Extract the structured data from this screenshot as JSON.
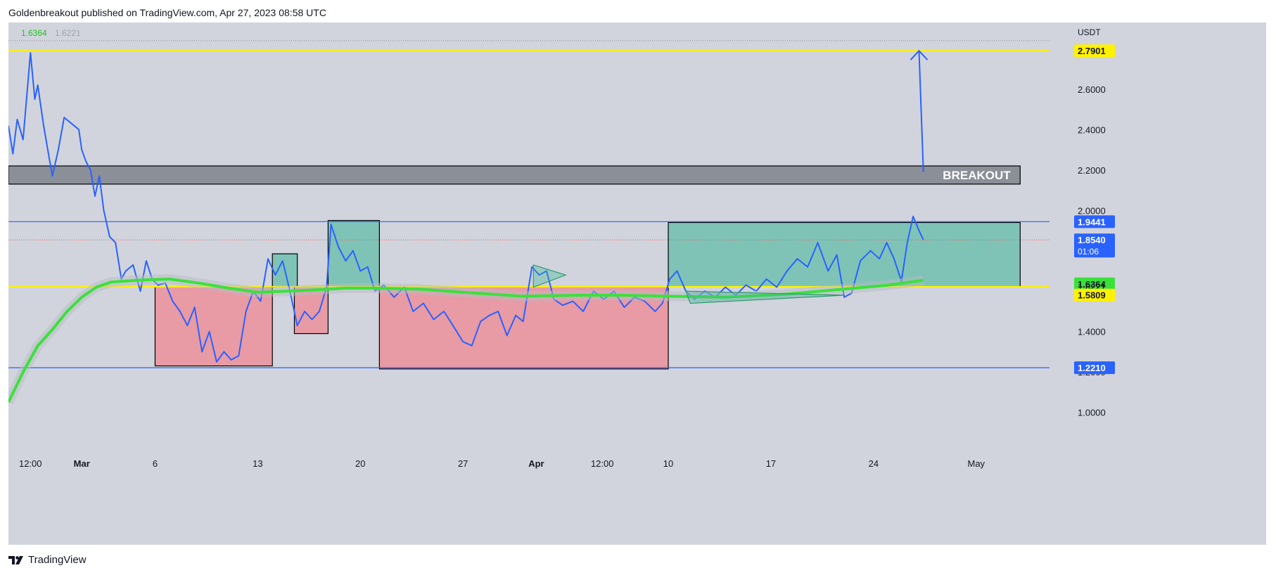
{
  "header": {
    "text": "Goldenbreakout published on TradingView.com, Apr 27, 2023 08:58 UTC"
  },
  "footer": {
    "brand": "TradingView",
    "icon": "tradingview-logo-icon"
  },
  "colors": {
    "background": "#d1d4dc",
    "price_line": "#2962ff",
    "ma_line": "#3be13b",
    "yellow_level": "#fff200",
    "blue_level": "#2962ff",
    "red_zone": "#e89aa5",
    "green_zone": "#7fc3b7",
    "breakout_zone": "#8a8f98"
  },
  "chart_data": {
    "type": "line",
    "symbol_values": {
      "current": "1.6364",
      "secondary": "1.6221"
    },
    "currency": "USDT",
    "y_ticks": [
      1.0,
      1.2,
      1.4,
      1.6,
      1.8,
      2.0,
      2.2,
      2.4,
      2.6
    ],
    "y_tick_labels": [
      "1.0000",
      "1.2000",
      "1.4000",
      "1.6000",
      "1.8000",
      "2.0000",
      "2.2000",
      "2.4000",
      "2.6000"
    ],
    "ylim": [
      0.79,
      2.93
    ],
    "x_range": [
      "2023-02-24",
      "2023-05-06"
    ],
    "x_ticks": [
      {
        "label": "12:00",
        "date": "2023-02-25T12:00"
      },
      {
        "label": "Mar",
        "date": "2023-03-01"
      },
      {
        "label": "6",
        "date": "2023-03-06"
      },
      {
        "label": "13",
        "date": "2023-03-13"
      },
      {
        "label": "20",
        "date": "2023-03-20"
      },
      {
        "label": "27",
        "date": "2023-03-27"
      },
      {
        "label": "Apr",
        "date": "2023-04-01"
      },
      {
        "label": "12:00",
        "date": "2023-04-05T12:00"
      },
      {
        "label": "10",
        "date": "2023-04-10"
      },
      {
        "label": "17",
        "date": "2023-04-17"
      },
      {
        "label": "24",
        "date": "2023-04-24"
      },
      {
        "label": "May",
        "date": "2023-05-01"
      }
    ],
    "price_labels": [
      {
        "text": "2.7901",
        "value": 2.7901,
        "style": "yellow"
      },
      {
        "text": "1.9441",
        "value": 1.9441,
        "style": "blue"
      },
      {
        "text": "1.8540",
        "value": 1.854,
        "style": "blue",
        "sub": "01:06"
      },
      {
        "text": "1.6364",
        "value": 1.6364,
        "style": "green"
      },
      {
        "text": "1.6221",
        "value": 1.6221,
        "style": "plain"
      },
      {
        "text": "1.5809",
        "value": 1.5809,
        "style": "yellow"
      },
      {
        "text": "1.2210",
        "value": 1.221,
        "style": "blue"
      }
    ],
    "horizontal_levels": [
      {
        "value": 2.7901,
        "color": "yellow"
      },
      {
        "value": 2.84,
        "color": "dotted"
      },
      {
        "value": 1.9441,
        "color": "blue"
      },
      {
        "value": 1.854,
        "color": "red-dotted"
      },
      {
        "value": 1.6221,
        "color": "yellow"
      },
      {
        "value": 1.221,
        "color": "blue"
      }
    ],
    "zones": [
      {
        "kind": "breakout",
        "x0": "2023-02-24",
        "x1": "2023-05-04",
        "y0": 2.13,
        "y1": 2.22,
        "label": "BREAKOUT"
      },
      {
        "kind": "red",
        "x0": "2023-03-06",
        "x1": "2023-03-14",
        "y0": 1.23,
        "y1": 1.6221
      },
      {
        "kind": "green",
        "x0": "2023-03-14",
        "x1": "2023-03-15.7",
        "y0": 1.6221,
        "y1": 1.785
      },
      {
        "kind": "red",
        "x0": "2023-03-15.5",
        "x1": "2023-03-17.8",
        "y0": 1.39,
        "y1": 1.6221
      },
      {
        "kind": "green",
        "x0": "2023-03-17.8",
        "x1": "2023-03-21.3",
        "y0": 1.6221,
        "y1": 1.95
      },
      {
        "kind": "red",
        "x0": "2023-03-21.3",
        "x1": "2023-04-10",
        "y0": 1.215,
        "y1": 1.6221
      },
      {
        "kind": "green",
        "x0": "2023-04-10",
        "x1": "2023-05-04",
        "y0": 1.6221,
        "y1": 1.94
      }
    ],
    "series": [
      {
        "type": "price",
        "points": [
          [
            "2023-02-24",
            2.42
          ],
          [
            "2023-02-24.3",
            2.28
          ],
          [
            "2023-02-24.6",
            2.45
          ],
          [
            "2023-02-25",
            2.35
          ],
          [
            "2023-02-25.5",
            2.78
          ],
          [
            "2023-02-25.8",
            2.55
          ],
          [
            "2023-02-26",
            2.62
          ],
          [
            "2023-02-26.4",
            2.42
          ],
          [
            "2023-02-26.8",
            2.25
          ],
          [
            "2023-02-27",
            2.17
          ],
          [
            "2023-02-27.4",
            2.3
          ],
          [
            "2023-02-27.8",
            2.46
          ],
          [
            "2023-02-28.3",
            2.43
          ],
          [
            "2023-02-28.8",
            2.4
          ],
          [
            "2023-03-01",
            2.3
          ],
          [
            "2023-03-01.3",
            2.24
          ],
          [
            "2023-03-01.6",
            2.2
          ],
          [
            "2023-03-01.9",
            2.07
          ],
          [
            "2023-03-02.2",
            2.17
          ],
          [
            "2023-03-02.5",
            2.0
          ],
          [
            "2023-03-02.9",
            1.87
          ],
          [
            "2023-03-03.3",
            1.84
          ],
          [
            "2023-03-03.7",
            1.66
          ],
          [
            "2023-03-04",
            1.7
          ],
          [
            "2023-03-04.5",
            1.73
          ],
          [
            "2023-03-05",
            1.6
          ],
          [
            "2023-03-05.4",
            1.75
          ],
          [
            "2023-03-05.8",
            1.66
          ],
          [
            "2023-03-06.2",
            1.63
          ],
          [
            "2023-03-06.7",
            1.64
          ],
          [
            "2023-03-07.2",
            1.55
          ],
          [
            "2023-03-07.7",
            1.5
          ],
          [
            "2023-03-08.2",
            1.43
          ],
          [
            "2023-03-08.7",
            1.52
          ],
          [
            "2023-03-09.2",
            1.3
          ],
          [
            "2023-03-09.7",
            1.4
          ],
          [
            "2023-03-10.2",
            1.25
          ],
          [
            "2023-03-10.7",
            1.3
          ],
          [
            "2023-03-11.2",
            1.26
          ],
          [
            "2023-03-11.7",
            1.28
          ],
          [
            "2023-03-12.2",
            1.5
          ],
          [
            "2023-03-12.7",
            1.6
          ],
          [
            "2023-03-13.2",
            1.55
          ],
          [
            "2023-03-13.7",
            1.76
          ],
          [
            "2023-03-14.2",
            1.68
          ],
          [
            "2023-03-14.7",
            1.75
          ],
          [
            "2023-03-15.2",
            1.6
          ],
          [
            "2023-03-15.7",
            1.43
          ],
          [
            "2023-03-16.2",
            1.5
          ],
          [
            "2023-03-16.7",
            1.46
          ],
          [
            "2023-03-17.2",
            1.5
          ],
          [
            "2023-03-17.7",
            1.62
          ],
          [
            "2023-03-18",
            1.93
          ],
          [
            "2023-03-18.5",
            1.82
          ],
          [
            "2023-03-19",
            1.75
          ],
          [
            "2023-03-19.5",
            1.8
          ],
          [
            "2023-03-20",
            1.7
          ],
          [
            "2023-03-20.5",
            1.72
          ],
          [
            "2023-03-21",
            1.6
          ],
          [
            "2023-03-21.6",
            1.63
          ],
          [
            "2023-03-22.3",
            1.57
          ],
          [
            "2023-03-23",
            1.62
          ],
          [
            "2023-03-23.6",
            1.5
          ],
          [
            "2023-03-24.3",
            1.54
          ],
          [
            "2023-03-25",
            1.46
          ],
          [
            "2023-03-25.7",
            1.5
          ],
          [
            "2023-03-26.4",
            1.42
          ],
          [
            "2023-03-27",
            1.35
          ],
          [
            "2023-03-27.6",
            1.33
          ],
          [
            "2023-03-28.2",
            1.45
          ],
          [
            "2023-03-28.8",
            1.48
          ],
          [
            "2023-03-29.4",
            1.5
          ],
          [
            "2023-03-30",
            1.38
          ],
          [
            "2023-03-30.6",
            1.48
          ],
          [
            "2023-03-31.1",
            1.45
          ],
          [
            "2023-03-31.7",
            1.72
          ],
          [
            "2023-04-01.2",
            1.68
          ],
          [
            "2023-04-01.7",
            1.7
          ],
          [
            "2023-04-02.2",
            1.56
          ],
          [
            "2023-04-02.8",
            1.53
          ],
          [
            "2023-04-03.5",
            1.55
          ],
          [
            "2023-04-04.2",
            1.5
          ],
          [
            "2023-04-04.9",
            1.6
          ],
          [
            "2023-04-05.6",
            1.56
          ],
          [
            "2023-04-06.3",
            1.6
          ],
          [
            "2023-04-07",
            1.52
          ],
          [
            "2023-04-07.7",
            1.57
          ],
          [
            "2023-04-08.4",
            1.55
          ],
          [
            "2023-04-09.1",
            1.5
          ],
          [
            "2023-04-09.6",
            1.54
          ],
          [
            "2023-04-10.1",
            1.66
          ],
          [
            "2023-04-10.6",
            1.7
          ],
          [
            "2023-04-11.2",
            1.6
          ],
          [
            "2023-04-11.8",
            1.56
          ],
          [
            "2023-04-12.5",
            1.6
          ],
          [
            "2023-04-13.2",
            1.57
          ],
          [
            "2023-04-13.9",
            1.62
          ],
          [
            "2023-04-14.6",
            1.58
          ],
          [
            "2023-04-15.3",
            1.63
          ],
          [
            "2023-04-16",
            1.6
          ],
          [
            "2023-04-16.7",
            1.66
          ],
          [
            "2023-04-17.4",
            1.62
          ],
          [
            "2023-04-18.1",
            1.7
          ],
          [
            "2023-04-18.8",
            1.76
          ],
          [
            "2023-04-19.5",
            1.72
          ],
          [
            "2023-04-20.2",
            1.84
          ],
          [
            "2023-04-20.9",
            1.7
          ],
          [
            "2023-04-21.5",
            1.78
          ],
          [
            "2023-04-22",
            1.57
          ],
          [
            "2023-04-22.5",
            1.59
          ],
          [
            "2023-04-23.1",
            1.75
          ],
          [
            "2023-04-23.8",
            1.8
          ],
          [
            "2023-04-24.4",
            1.76
          ],
          [
            "2023-04-24.9",
            1.84
          ],
          [
            "2023-04-25.4",
            1.76
          ],
          [
            "2023-04-25.9",
            1.65
          ],
          [
            "2023-04-26.3",
            1.84
          ],
          [
            "2023-04-26.7",
            1.97
          ],
          [
            "2023-04-27.1",
            1.9
          ],
          [
            "2023-04-27.4",
            1.854
          ]
        ]
      },
      {
        "type": "ma",
        "points": [
          [
            "2023-02-24",
            1.05
          ],
          [
            "2023-02-25",
            1.2
          ],
          [
            "2023-02-26",
            1.33
          ],
          [
            "2023-02-27",
            1.41
          ],
          [
            "2023-02-28",
            1.5
          ],
          [
            "2023-03-01",
            1.57
          ],
          [
            "2023-03-02",
            1.62
          ],
          [
            "2023-03-03",
            1.645
          ],
          [
            "2023-03-05",
            1.655
          ],
          [
            "2023-03-07",
            1.66
          ],
          [
            "2023-03-09",
            1.64
          ],
          [
            "2023-03-11",
            1.615
          ],
          [
            "2023-03-13",
            1.595
          ],
          [
            "2023-03-15",
            1.6
          ],
          [
            "2023-03-17",
            1.607
          ],
          [
            "2023-03-19",
            1.615
          ],
          [
            "2023-03-21",
            1.615
          ],
          [
            "2023-03-24",
            1.61
          ],
          [
            "2023-03-27",
            1.595
          ],
          [
            "2023-03-31",
            1.575
          ],
          [
            "2023-04-04",
            1.58
          ],
          [
            "2023-04-07",
            1.58
          ],
          [
            "2023-04-10",
            1.575
          ],
          [
            "2023-04-14",
            1.57
          ],
          [
            "2023-04-18",
            1.585
          ],
          [
            "2023-04-22",
            1.61
          ],
          [
            "2023-04-25",
            1.63
          ],
          [
            "2023-04-27.4",
            1.654
          ]
        ]
      }
    ],
    "annotations": [
      {
        "kind": "pennant",
        "points": [
          [
            "2023-03-31.8",
            1.73
          ],
          [
            "2023-04-03",
            1.68
          ],
          [
            "2023-03-31.8",
            1.62
          ]
        ]
      },
      {
        "kind": "wedge",
        "points": [
          [
            "2023-04-11.2",
            1.6
          ],
          [
            "2023-04-22",
            1.58
          ],
          [
            "2023-04-11.5",
            1.54
          ]
        ]
      },
      {
        "kind": "arrow",
        "from": [
          "2023-04-27.4",
          2.19
        ],
        "to": [
          "2023-04-27.1",
          2.79
        ]
      }
    ]
  }
}
